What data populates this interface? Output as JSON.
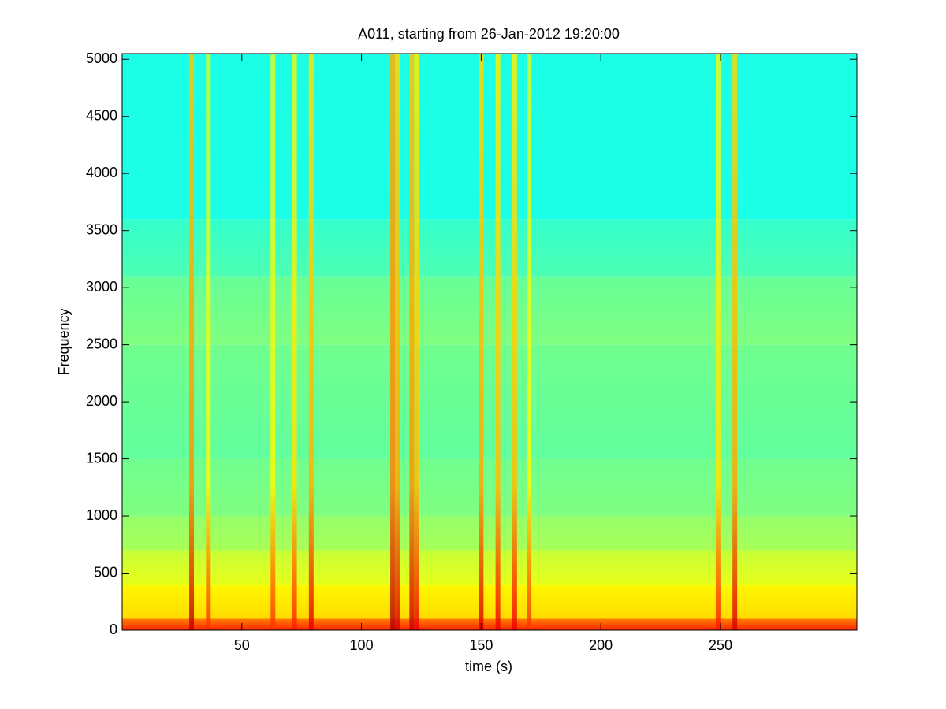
{
  "chart_data": {
    "type": "spectrogram",
    "title": "A011, starting from 26-Jan-2012 19:20:00",
    "xlabel": "time (s)",
    "ylabel": "Frequency",
    "xlim": [
      0,
      307
    ],
    "ylim": [
      0,
      5050
    ],
    "xticks": [
      50,
      100,
      150,
      200,
      250
    ],
    "yticks": [
      0,
      500,
      1000,
      1500,
      2000,
      2500,
      3000,
      3500,
      4000,
      4500,
      5000
    ],
    "colormap": "jet",
    "clim": [
      0,
      1
    ],
    "background": {
      "bins": [
        0,
        100,
        400,
        700,
        1000,
        1500,
        2500,
        3100,
        3600,
        5050
      ],
      "values": [
        0.84,
        0.66,
        0.6,
        0.54,
        0.5,
        0.47,
        0.5,
        0.45,
        0.4
      ]
    },
    "bursts": {
      "x": [
        29,
        36,
        63,
        72,
        79,
        113,
        115,
        121,
        123,
        150,
        157,
        164,
        170,
        249,
        256
      ],
      "values": [
        0.68,
        0.58,
        0.58,
        0.6,
        0.65,
        0.7,
        0.66,
        0.68,
        0.64,
        0.66,
        0.64,
        0.64,
        0.58,
        0.6,
        0.66
      ]
    }
  }
}
